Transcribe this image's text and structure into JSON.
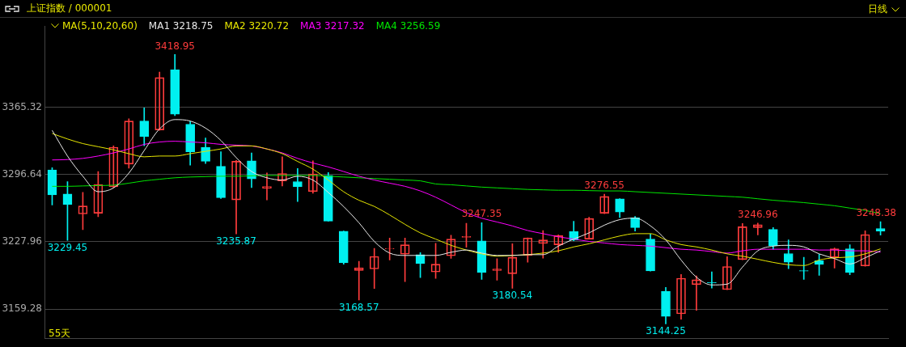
{
  "chart_data": {
    "type": "candlestick",
    "title": "上证指数 / 000001",
    "legend_title": "MA(5,10,20,60)",
    "annotations": [
      "日线",
      "55天",
      {
        "text": "3418.95",
        "y": 3418.95
      },
      {
        "text": "3229.45",
        "y": 3229.45
      },
      {
        "text": "3235.87",
        "y": 3235.87
      },
      {
        "text": "3168.57",
        "y": 3168.57
      },
      {
        "text": "3247.35",
        "y": 3247.35
      },
      {
        "text": "3180.54",
        "y": 3180.54
      },
      {
        "text": "3276.55",
        "y": 3276.55
      },
      {
        "text": "3144.25",
        "y": 3144.25
      },
      {
        "text": "3246.96",
        "y": 3246.96
      },
      {
        "text": "3248.38",
        "y": 3248.38
      }
    ],
    "categories": [
      null,
      null,
      null,
      null,
      null,
      null,
      null,
      null,
      null,
      null,
      null,
      null,
      null,
      null,
      null,
      null,
      null,
      null,
      null,
      null,
      null,
      null,
      null,
      null,
      null,
      null,
      null,
      null,
      null,
      null,
      null,
      null,
      null,
      null,
      null,
      null,
      null,
      null,
      null,
      null,
      null,
      null,
      null,
      null,
      null,
      null,
      null,
      null,
      null,
      null,
      null,
      null,
      null,
      null,
      null
    ],
    "ohlc": [
      [
        3301.2,
        3303.5,
        3265.5,
        3275.8
      ],
      [
        3276.6,
        3289.3,
        3229.45,
        3265.9
      ],
      [
        3256.3,
        3278.3,
        3240.2,
        3264.5
      ],
      [
        3257.1,
        3299.6,
        3253.6,
        3286.1
      ],
      [
        3284.0,
        3325.7,
        3283.0,
        3324.4
      ],
      [
        3307.2,
        3353.4,
        3303.0,
        3351.1
      ],
      [
        3351.1,
        3364.5,
        3325.9,
        3335.2
      ],
      [
        3342.0,
        3401.0,
        3341.5,
        3395.5
      ],
      [
        3403.4,
        3418.95,
        3356.7,
        3358.1
      ],
      [
        3347.9,
        3350.5,
        3306.1,
        3319.7
      ],
      [
        3324.1,
        3333.8,
        3307.8,
        3310.0
      ],
      [
        3304.9,
        3319.7,
        3272.1,
        3272.9
      ],
      [
        3270.7,
        3310.9,
        3235.87,
        3310.0
      ],
      [
        3310.6,
        3318.6,
        3283.2,
        3292.0
      ],
      [
        3282.6,
        3298.1,
        3270.7,
        3284.3
      ],
      [
        3290.0,
        3314.6,
        3284.8,
        3297.6
      ],
      [
        3289.3,
        3302.7,
        3268.9,
        3284.0
      ],
      [
        3279.2,
        3310.6,
        3277.5,
        3297.0
      ],
      [
        3295.6,
        3298.5,
        3248.9,
        3249.0
      ],
      [
        3238.7,
        3238.9,
        3205.1,
        3206.5
      ],
      [
        3198.6,
        3207.9,
        3168.57,
        3201.4
      ],
      [
        3200.2,
        3221.2,
        3180.2,
        3213.0
      ],
      [
        3220.7,
        3231.7,
        3209.3,
        3221.2
      ],
      [
        3215.3,
        3231.7,
        3187.2,
        3224.9
      ],
      [
        3214.7,
        3216.9,
        3191.5,
        3205.9
      ],
      [
        3197.1,
        3226.3,
        3190.6,
        3205.1
      ],
      [
        3213.6,
        3234.6,
        3210.9,
        3230.7
      ],
      [
        3232.4,
        3246.8,
        3222.4,
        3233.3
      ],
      [
        3228.8,
        3247.35,
        3189.5,
        3196.6
      ],
      [
        3198.7,
        3210.7,
        3188.7,
        3200.1
      ],
      [
        3195.4,
        3225.9,
        3180.54,
        3212.1
      ],
      [
        3214.2,
        3232.0,
        3207.1,
        3231.8
      ],
      [
        3226.2,
        3239.4,
        3211.3,
        3229.8
      ],
      [
        3224.8,
        3235.0,
        3217.2,
        3234.1
      ],
      [
        3238.3,
        3248.8,
        3229.0,
        3229.5
      ],
      [
        3230.7,
        3252.9,
        3230.5,
        3251.7
      ],
      [
        3257.0,
        3276.55,
        3256.5,
        3274.1
      ],
      [
        3271.7,
        3271.9,
        3252.6,
        3258.2
      ],
      [
        3252.6,
        3253.8,
        3238.8,
        3242.4
      ],
      [
        3230.7,
        3235.9,
        3198.0,
        3198.3
      ],
      [
        3177.5,
        3181.3,
        3144.25,
        3151.7
      ],
      [
        3154.4,
        3194.5,
        3149.0,
        3190.7
      ],
      [
        3184.2,
        3193.1,
        3157.9,
        3189.2
      ],
      [
        3186.6,
        3197.2,
        3180.7,
        3186.0
      ],
      [
        3179.2,
        3212.8,
        3179.0,
        3202.7
      ],
      [
        3209.8,
        3246.5,
        3209.5,
        3243.2
      ],
      [
        3242.4,
        3246.96,
        3235.0,
        3245.3
      ],
      [
        3240.6,
        3242.4,
        3220.3,
        3223.8
      ],
      [
        3215.9,
        3229.8,
        3200.4,
        3207.1
      ],
      [
        3198.5,
        3212.1,
        3189.5,
        3198.0
      ],
      [
        3208.6,
        3215.1,
        3193.7,
        3204.8
      ],
      [
        3211.9,
        3221.5,
        3201.0,
        3220.7
      ],
      [
        3220.7,
        3224.8,
        3194.2,
        3196.6
      ],
      [
        3203.3,
        3239.1,
        3203.0,
        3235.3
      ],
      [
        3241.5,
        3248.38,
        3234.7,
        3238.8
      ]
    ],
    "colors": [
      "#00f0f0",
      "#00f0f0",
      "#ff3c3c",
      "#ff3c3c",
      "#ff3c3c",
      "#ff3c3c",
      "#00f0f0",
      "#ff3c3c",
      "#00f0f0",
      "#00f0f0",
      "#00f0f0",
      "#00f0f0",
      "#ff3c3c",
      "#00f0f0",
      "#ff3c3c",
      "#ff3c3c",
      "#00f0f0",
      "#ff3c3c",
      "#00f0f0",
      "#00f0f0",
      "#ff3c3c",
      "#ff3c3c",
      "#ff3c3c",
      "#ff3c3c",
      "#00f0f0",
      "#ff3c3c",
      "#ff3c3c",
      "#ff3c3c",
      "#00f0f0",
      "#ff3c3c",
      "#ff3c3c",
      "#ff3c3c",
      "#ff3c3c",
      "#ff3c3c",
      "#00f0f0",
      "#ff3c3c",
      "#ff3c3c",
      "#00f0f0",
      "#00f0f0",
      "#00f0f0",
      "#00f0f0",
      "#ff3c3c",
      "#ff3c3c",
      "#00f0f0",
      "#ff3c3c",
      "#ff3c3c",
      "#ff3c3c",
      "#00f0f0",
      "#00f0f0",
      "#00f0f0",
      "#00f0f0",
      "#ff3c3c",
      "#00f0f0",
      "#ff3c3c",
      "#00f0f0"
    ],
    "series": [
      {
        "name": "MA1 3218.75",
        "type": "line",
        "color": "#e8e8e8",
        "values": [
          3341.6,
          3315.4,
          3294.8,
          3279.0,
          3282.9,
          3298.0,
          3321.0,
          3343.1,
          3352.6,
          3351.1,
          3343.9,
          3331.3,
          3313.8,
          3299.6,
          3293.2,
          3290.9,
          3294.8,
          3290.9,
          3278.2,
          3263.9,
          3247.3,
          3228.3,
          3216.4,
          3214.0,
          3214.0,
          3214.0,
          3217.2,
          3219.5,
          3216.4,
          3214.0,
          3214.0,
          3214.8,
          3214.8,
          3223.5,
          3230.7,
          3237.0,
          3244.9,
          3250.5,
          3252.1,
          3244.2,
          3229.9,
          3209.3,
          3191.8,
          3183.9,
          3184.7,
          3202.1,
          3218.7,
          3223.5,
          3224.3,
          3222.7,
          3215.6,
          3210.8,
          3205.3,
          3211.6,
          3218.75
        ]
      },
      {
        "name": "MA2 3220.72",
        "type": "line",
        "color": "#e6e600",
        "values": [
          3338.4,
          3332.8,
          3328.1,
          3324.9,
          3321.7,
          3317.8,
          3314.6,
          3315.4,
          3315.4,
          3317.8,
          3320.2,
          3322.6,
          3325.7,
          3325.7,
          3322.6,
          3317.8,
          3309.9,
          3302.0,
          3290.9,
          3279.0,
          3270.3,
          3264.0,
          3255.3,
          3245.7,
          3237.0,
          3230.7,
          3224.3,
          3219.5,
          3215.6,
          3213.2,
          3214.0,
          3214.8,
          3216.4,
          3218.7,
          3222.7,
          3225.9,
          3229.9,
          3233.8,
          3236.2,
          3236.2,
          3229.9,
          3225.1,
          3222.7,
          3219.5,
          3215.6,
          3213.2,
          3210.1,
          3206.9,
          3204.5,
          3203.7,
          3209.3,
          3211.6,
          3212.4,
          3215.6,
          3220.72
        ]
      },
      {
        "name": "MA3 3217.32",
        "type": "line",
        "color": "#ff00ff",
        "values": [
          3311.4,
          3311.8,
          3313.0,
          3315.4,
          3318.6,
          3322.6,
          3327.3,
          3329.7,
          3330.5,
          3329.7,
          3328.9,
          3327.3,
          3326.5,
          3325.7,
          3322.6,
          3318.6,
          3313.0,
          3308.3,
          3304.3,
          3299.6,
          3294.8,
          3290.9,
          3287.7,
          3284.5,
          3279.8,
          3273.4,
          3265.5,
          3257.6,
          3252.0,
          3248.1,
          3244.1,
          3239.4,
          3236.2,
          3233.0,
          3230.7,
          3228.3,
          3226.7,
          3225.1,
          3224.3,
          3223.5,
          3221.9,
          3220.3,
          3219.5,
          3217.9,
          3216.4,
          3218.7,
          3220.3,
          3220.3,
          3220.3,
          3220.3,
          3219.5,
          3219.5,
          3218.7,
          3218.7,
          3217.32
        ]
      },
      {
        "name": "MA4 3256.59",
        "type": "line",
        "color": "#00e600",
        "values": [
          3284.5,
          3284.5,
          3284.9,
          3285.3,
          3285.7,
          3287.7,
          3290.1,
          3291.7,
          3293.2,
          3294.0,
          3294.4,
          3294.8,
          3294.8,
          3295.2,
          3295.6,
          3295.6,
          3295.6,
          3295.6,
          3294.8,
          3294.0,
          3293.2,
          3292.4,
          3291.7,
          3290.9,
          3290.1,
          3286.9,
          3286.1,
          3284.9,
          3283.7,
          3282.9,
          3282.1,
          3281.3,
          3280.9,
          3280.5,
          3280.5,
          3280.1,
          3279.8,
          3279.8,
          3279.0,
          3278.2,
          3277.4,
          3276.6,
          3275.8,
          3275.0,
          3274.2,
          3273.4,
          3271.8,
          3270.3,
          3269.1,
          3267.9,
          3266.3,
          3264.7,
          3262.3,
          3259.9,
          3256.59
        ]
      }
    ],
    "ylim": [
      3129,
      3448
    ],
    "yticks": [
      3159.28,
      3227.96,
      3296.64,
      3365.32
    ],
    "grid": "y",
    "legend": "top left",
    "tick_labels": "y"
  }
}
